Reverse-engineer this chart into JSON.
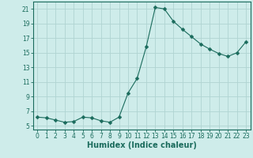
{
  "x": [
    0,
    1,
    2,
    3,
    4,
    5,
    6,
    7,
    8,
    9,
    10,
    11,
    12,
    13,
    14,
    15,
    16,
    17,
    18,
    19,
    20,
    21,
    22,
    23
  ],
  "y": [
    6.2,
    6.1,
    5.8,
    5.5,
    5.6,
    6.2,
    6.1,
    5.7,
    5.5,
    6.2,
    9.5,
    11.5,
    15.8,
    21.2,
    21.0,
    19.3,
    18.2,
    17.2,
    16.2,
    15.5,
    14.9,
    14.5,
    15.0,
    16.5
  ],
  "line_color": "#1a6b5c",
  "marker": "D",
  "marker_size": 2.5,
  "bg_color": "#ceecea",
  "grid_color": "#b0d4d2",
  "xlabel": "Humidex (Indice chaleur)",
  "xlim": [
    -0.5,
    23.5
  ],
  "ylim": [
    4.5,
    22.0
  ],
  "xticks": [
    0,
    1,
    2,
    3,
    4,
    5,
    6,
    7,
    8,
    9,
    10,
    11,
    12,
    13,
    14,
    15,
    16,
    17,
    18,
    19,
    20,
    21,
    22,
    23
  ],
  "yticks": [
    5,
    7,
    9,
    11,
    13,
    15,
    17,
    19,
    21
  ],
  "tick_color": "#1a6b5c",
  "label_fontsize": 5.5,
  "xlabel_fontsize": 7,
  "axis_color": "#1a6b5c"
}
